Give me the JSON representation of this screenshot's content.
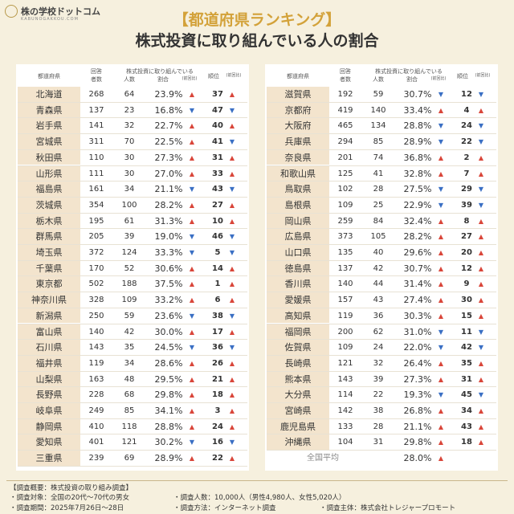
{
  "header": {
    "logo": "株の学校ドットコム",
    "logo_sub": "KABUNOGAKKOU.COM",
    "title": "【都道府県ランキング】",
    "subtitle": "株式投資に取り組んでいる人の割合"
  },
  "columns": {
    "pref": "都道府県",
    "resp": "回答",
    "resp2": "者数",
    "topic": "株式投資に取り組んでいる",
    "count": "人数",
    "pct": "割合",
    "prev": "(前回比)",
    "rank": "順位"
  },
  "tables": [
    {
      "rows": [
        [
          "北海道",
          268,
          64,
          "23.9%",
          "▲",
          37,
          "▲"
        ],
        [
          "青森県",
          137,
          23,
          "16.8%",
          "▼",
          47,
          "▼"
        ],
        [
          "岩手県",
          141,
          32,
          "22.7%",
          "▲",
          40,
          "▲"
        ],
        [
          "宮城県",
          311,
          70,
          "22.5%",
          "▲",
          41,
          "▼"
        ],
        [
          "秋田県",
          110,
          30,
          "27.3%",
          "▲",
          31,
          "▲"
        ],
        [
          "山形県",
          111,
          30,
          "27.0%",
          "▲",
          33,
          "▲"
        ],
        [
          "福島県",
          161,
          34,
          "21.1%",
          "▼",
          43,
          "▼"
        ],
        [
          "茨城県",
          354,
          100,
          "28.2%",
          "▲",
          27,
          "▲"
        ],
        [
          "栃木県",
          195,
          61,
          "31.3%",
          "▲",
          10,
          "▲"
        ],
        [
          "群馬県",
          205,
          39,
          "19.0%",
          "▼",
          46,
          "▼"
        ],
        [
          "埼玉県",
          372,
          124,
          "33.3%",
          "▼",
          5,
          "▼"
        ],
        [
          "千葉県",
          170,
          52,
          "30.6%",
          "▲",
          14,
          "▲"
        ],
        [
          "東京都",
          502,
          188,
          "37.5%",
          "▲",
          1,
          "▲"
        ],
        [
          "神奈川県",
          328,
          109,
          "33.2%",
          "▲",
          6,
          "▲"
        ],
        [
          "新潟県",
          250,
          59,
          "23.6%",
          "▼",
          38,
          "▼"
        ],
        [
          "富山県",
          140,
          42,
          "30.0%",
          "▲",
          17,
          "▲"
        ],
        [
          "石川県",
          143,
          35,
          "24.5%",
          "▼",
          36,
          "▼"
        ],
        [
          "福井県",
          119,
          34,
          "28.6%",
          "▲",
          26,
          "▲"
        ],
        [
          "山梨県",
          163,
          48,
          "29.5%",
          "▲",
          21,
          "▲"
        ],
        [
          "長野県",
          228,
          68,
          "29.8%",
          "▲",
          18,
          "▲"
        ],
        [
          "岐阜県",
          249,
          85,
          "34.1%",
          "▲",
          3,
          "▲"
        ],
        [
          "静岡県",
          410,
          118,
          "28.8%",
          "▲",
          24,
          "▲"
        ],
        [
          "愛知県",
          401,
          121,
          "30.2%",
          "▼",
          16,
          "▼"
        ],
        [
          "三重県",
          239,
          69,
          "28.9%",
          "▲",
          22,
          "▲"
        ]
      ]
    },
    {
      "rows": [
        [
          "滋賀県",
          192,
          59,
          "30.7%",
          "▼",
          12,
          "▼"
        ],
        [
          "京都府",
          419,
          140,
          "33.4%",
          "▲",
          4,
          "▲"
        ],
        [
          "大阪府",
          465,
          134,
          "28.8%",
          "▼",
          24,
          "▼"
        ],
        [
          "兵庫県",
          294,
          85,
          "28.9%",
          "▼",
          22,
          "▼"
        ],
        [
          "奈良県",
          201,
          74,
          "36.8%",
          "▲",
          2,
          "▲"
        ],
        [
          "和歌山県",
          125,
          41,
          "32.8%",
          "▲",
          7,
          "▲"
        ],
        [
          "鳥取県",
          102,
          28,
          "27.5%",
          "▼",
          29,
          "▼"
        ],
        [
          "島根県",
          109,
          25,
          "22.9%",
          "▼",
          39,
          "▼"
        ],
        [
          "岡山県",
          259,
          84,
          "32.4%",
          "▲",
          8,
          "▲"
        ],
        [
          "広島県",
          373,
          105,
          "28.2%",
          "▲",
          27,
          "▲"
        ],
        [
          "山口県",
          135,
          40,
          "29.6%",
          "▲",
          20,
          "▲"
        ],
        [
          "徳島県",
          137,
          42,
          "30.7%",
          "▲",
          12,
          "▲"
        ],
        [
          "香川県",
          140,
          44,
          "31.4%",
          "▲",
          9,
          "▲"
        ],
        [
          "愛媛県",
          157,
          43,
          "27.4%",
          "▲",
          30,
          "▲"
        ],
        [
          "高知県",
          119,
          36,
          "30.3%",
          "▲",
          15,
          "▲"
        ],
        [
          "福岡県",
          200,
          62,
          "31.0%",
          "▼",
          11,
          "▼"
        ],
        [
          "佐賀県",
          109,
          24,
          "22.0%",
          "▼",
          42,
          "▼"
        ],
        [
          "長崎県",
          121,
          32,
          "26.4%",
          "▲",
          35,
          "▲"
        ],
        [
          "熊本県",
          143,
          39,
          "27.3%",
          "▲",
          31,
          "▲"
        ],
        [
          "大分県",
          114,
          22,
          "19.3%",
          "▼",
          45,
          "▼"
        ],
        [
          "宮崎県",
          142,
          38,
          "26.8%",
          "▲",
          34,
          "▲"
        ],
        [
          "鹿児島県",
          133,
          28,
          "21.1%",
          "▲",
          43,
          "▲"
        ],
        [
          "沖縄県",
          104,
          31,
          "29.8%",
          "▲",
          18,
          "▲"
        ]
      ],
      "average": {
        "label": "全国平均",
        "pct": "28.0%",
        "trend": "▲"
      }
    }
  ],
  "footer": {
    "heading": "【調査概要：株式投資の取り組み調査】",
    "target": "・調査対象：全国の20代～70代の男女",
    "number": "・調査人数：10,000人（男性4,980人、女性5,020人）",
    "period": "・調査期間：2025年7月26日～28日",
    "method": "・調査方法：インターネット調査",
    "org": "・調査主体：株式会社トレジャープロモート"
  }
}
